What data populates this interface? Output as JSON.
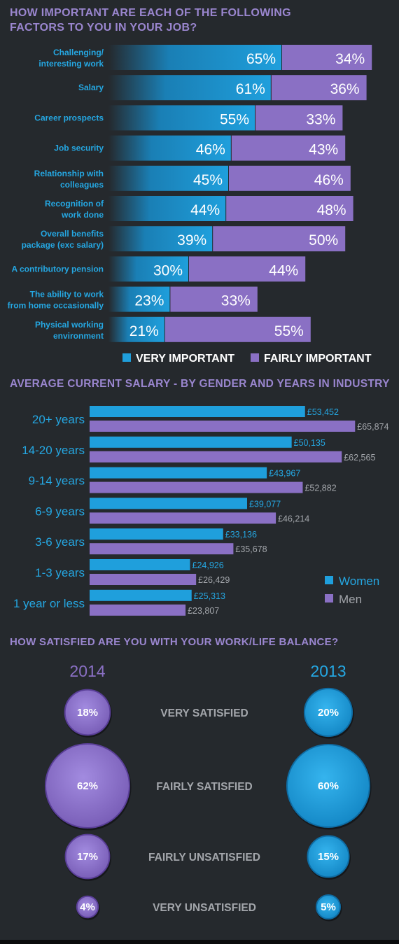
{
  "colors": {
    "blue": "#1f9fdc",
    "purple": "#8a70c4",
    "title_purple": "#9a86cf",
    "label_blue": "#25a7e2",
    "label_grey": "#a3a6ab",
    "background": "#25292d"
  },
  "section1": {
    "title": "HOW IMPORTANT ARE EACH OF THE FOLLOWING FACTORS TO YOU IN YOUR JOB?"
  },
  "section2": {
    "title": "AVERAGE CURRENT SALARY - BY GENDER AND YEARS IN INDUSTRY"
  },
  "section3": {
    "title": "HOW SATISFIED ARE YOU WITH YOUR WORK/LIFE BALANCE?"
  },
  "chart_data": [
    {
      "type": "bar",
      "orientation": "horizontal",
      "stacked": true,
      "categories": [
        [
          "Challenging/",
          "interesting work"
        ],
        [
          "Salary"
        ],
        [
          "Career prospects"
        ],
        [
          "Job security"
        ],
        [
          "Relationship with",
          "colleagues"
        ],
        [
          "Recognition of",
          "work done"
        ],
        [
          "Overall benefits",
          "package (exc salary)"
        ],
        [
          "A contributory pension"
        ],
        [
          "The ability to work",
          "from home occasionally"
        ],
        [
          "Physical working",
          "environment"
        ]
      ],
      "series": [
        {
          "name": "VERY IMPORTANT",
          "values": [
            65,
            61,
            55,
            46,
            45,
            44,
            39,
            30,
            23,
            21
          ]
        },
        {
          "name": "FAIRLY IMPORTANT",
          "values": [
            34,
            36,
            33,
            43,
            46,
            48,
            50,
            44,
            33,
            55
          ]
        }
      ],
      "unit": "%",
      "legend_position": "bottom"
    },
    {
      "type": "bar",
      "orientation": "horizontal",
      "categories": [
        "20+ years",
        "14-20 years",
        "9-14 years",
        "6-9 years",
        "3-6 years",
        "1-3 years",
        "1 year or less"
      ],
      "series": [
        {
          "name": "Women",
          "values": [
            53452,
            50135,
            43967,
            39077,
            33136,
            24926,
            25313
          ]
        },
        {
          "name": "Men",
          "values": [
            65874,
            62565,
            52882,
            46214,
            35678,
            26429,
            23807
          ]
        }
      ],
      "value_prefix": "£",
      "legend_position": "bottom-right"
    },
    {
      "type": "bubble",
      "columns": [
        "2014",
        "2013"
      ],
      "categories": [
        "VERY SATISFIED",
        "FAIRLY  SATISFIED",
        "FAIRLY UNSATISFIED",
        "VERY UNSATISFIED"
      ],
      "series": [
        {
          "name": "2014",
          "values": [
            18,
            62,
            17,
            4
          ]
        },
        {
          "name": "2013",
          "values": [
            20,
            60,
            15,
            5
          ]
        }
      ],
      "unit": "%"
    }
  ]
}
